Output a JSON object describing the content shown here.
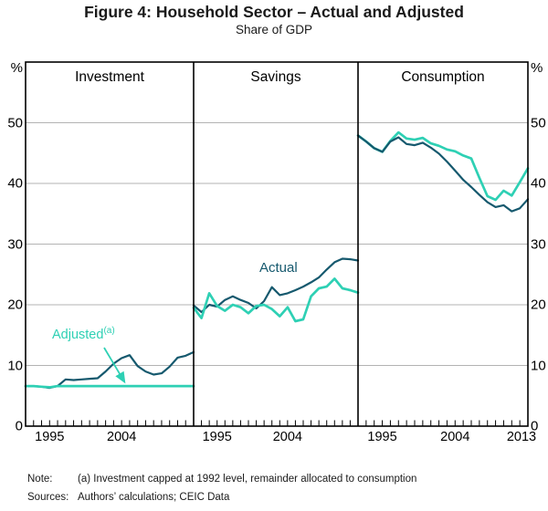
{
  "figure": {
    "title": "Figure 4: Household Sector – Actual and Adjusted",
    "subtitle": "Share of GDP",
    "note_label": "Note:",
    "note_text": "(a) Investment capped at 1992 level, remainder allocated to consumption",
    "sources_label": "Sources:",
    "sources_text": "Authors’ calculations; CEIC Data"
  },
  "chart_data": {
    "type": "line",
    "unit": "%",
    "ylim": [
      0,
      60
    ],
    "y_ticks": [
      0,
      10,
      20,
      30,
      40,
      50
    ],
    "y_gridlines": [
      10,
      20,
      30,
      40,
      50
    ],
    "x_years": [
      1992,
      1993,
      1994,
      1995,
      1996,
      1997,
      1998,
      1999,
      2000,
      2001,
      2002,
      2003,
      2004,
      2005,
      2006,
      2007,
      2008,
      2009,
      2010,
      2011,
      2012,
      2013
    ],
    "grid_on": true,
    "legend": {
      "actual_label": "Actual",
      "adjusted_label": "Adjusted",
      "adjusted_sup": "(a)"
    },
    "colors": {
      "actual": "#16596e",
      "adjusted": "#2ed0b4",
      "grid": "#b3b3b3",
      "frame": "#000000"
    },
    "panels": [
      {
        "title": "Investment",
        "x_tick_labels": [
          1995,
          2004
        ],
        "series": [
          {
            "name": "Actual",
            "values": [
              6.6,
              6.6,
              6.5,
              6.3,
              6.6,
              7.7,
              7.6,
              7.7,
              7.8,
              7.9,
              9.0,
              10.3,
              11.2,
              11.7,
              9.9,
              9.0,
              8.5,
              8.7,
              9.8,
              11.3,
              11.6,
              12.2
            ]
          },
          {
            "name": "Adjusted",
            "values": [
              6.6,
              6.6,
              6.5,
              6.4,
              6.6,
              6.6,
              6.6,
              6.6,
              6.6,
              6.6,
              6.6,
              6.6,
              6.6,
              6.6,
              6.6,
              6.6,
              6.6,
              6.6,
              6.6,
              6.6,
              6.6,
              6.6
            ]
          }
        ]
      },
      {
        "title": "Savings",
        "x_tick_labels": [
          1995,
          2004
        ],
        "series": [
          {
            "name": "Actual",
            "values": [
              19.9,
              18.8,
              20.0,
              19.7,
              20.8,
              21.4,
              20.8,
              20.3,
              19.4,
              20.6,
              22.9,
              21.6,
              21.9,
              22.4,
              23.0,
              23.7,
              24.5,
              25.8,
              27.0,
              27.6,
              27.5,
              27.3
            ]
          },
          {
            "name": "Adjusted",
            "values": [
              19.5,
              17.8,
              21.9,
              19.8,
              19.0,
              20.0,
              19.6,
              18.6,
              19.8,
              20.0,
              19.3,
              18.1,
              19.6,
              17.3,
              17.6,
              21.4,
              22.7,
              23.0,
              24.3,
              22.7,
              22.4,
              22.0
            ]
          }
        ]
      },
      {
        "title": "Consumption",
        "x_tick_labels": [
          1995,
          2004,
          2013
        ],
        "series": [
          {
            "name": "Actual",
            "values": [
              47.9,
              46.9,
              45.8,
              45.2,
              46.9,
              47.6,
              46.5,
              46.3,
              46.7,
              45.9,
              44.9,
              43.6,
              42.1,
              40.6,
              39.4,
              38.1,
              36.9,
              36.1,
              36.4,
              35.4,
              35.9,
              37.4
            ]
          },
          {
            "name": "Adjusted",
            "values": [
              47.9,
              46.9,
              45.8,
              45.2,
              47.0,
              48.4,
              47.4,
              47.2,
              47.5,
              46.6,
              46.2,
              45.6,
              45.3,
              44.6,
              44.1,
              40.9,
              37.9,
              37.3,
              38.8,
              38.0,
              40.2,
              42.5
            ]
          }
        ]
      }
    ]
  }
}
